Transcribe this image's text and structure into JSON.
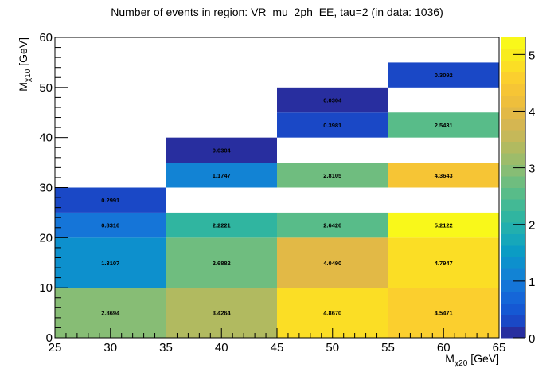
{
  "chart_data": {
    "type": "heatmap",
    "title": "Number of events in region: VR_mu_2ph_EE, tau=2 (in data: 1036)",
    "xlabel": {
      "main": "M",
      "sub": "χ20",
      "unit": " [GeV]"
    },
    "ylabel": {
      "main": "M",
      "sub": "χ10",
      "unit": " [GeV]"
    },
    "xlim": [
      25,
      65
    ],
    "ylim": [
      0,
      60
    ],
    "zlim": [
      0,
      5.3
    ],
    "x_ticks": [
      25,
      30,
      35,
      40,
      45,
      50,
      55,
      60,
      65
    ],
    "y_ticks": [
      0,
      10,
      20,
      30,
      40,
      50,
      60
    ],
    "z_ticks": [
      0,
      1,
      2,
      3,
      4,
      5
    ],
    "palette": [
      "#282e9f",
      "#1a48c6",
      "#1558d3",
      "#1566d8",
      "#1575d8",
      "#1283d4",
      "#0d90cd",
      "#0b9cc4",
      "#16a7ba",
      "#22afae",
      "#30b5a0",
      "#43b995",
      "#58bc89",
      "#6fbd7f",
      "#87bd75",
      "#9dbc6a",
      "#b1ba60",
      "#c5b859",
      "#d5b651",
      "#e2b946",
      "#eebf3c",
      "#f6c535",
      "#fbcf2e",
      "#fbde25",
      "#f8ec1d",
      "#f9f81a"
    ],
    "cells": [
      {
        "x0": 25,
        "x1": 35,
        "y0": 0,
        "y1": 10,
        "value": 2.8694,
        "label": "2.8694"
      },
      {
        "x0": 25,
        "x1": 35,
        "y0": 10,
        "y1": 20,
        "value": 1.3107,
        "label": "1.3107"
      },
      {
        "x0": 25,
        "x1": 35,
        "y0": 20,
        "y1": 25,
        "value": 0.8316,
        "label": "0.8316"
      },
      {
        "x0": 25,
        "x1": 35,
        "y0": 25,
        "y1": 30,
        "value": 0.2991,
        "label": "0.2991"
      },
      {
        "x0": 35,
        "x1": 45,
        "y0": 0,
        "y1": 10,
        "value": 3.4264,
        "label": "3.4264"
      },
      {
        "x0": 35,
        "x1": 45,
        "y0": 10,
        "y1": 20,
        "value": 2.6882,
        "label": "2.6882"
      },
      {
        "x0": 35,
        "x1": 45,
        "y0": 20,
        "y1": 25,
        "value": 2.2221,
        "label": "2.2221"
      },
      {
        "x0": 35,
        "x1": 45,
        "y0": 30,
        "y1": 35,
        "value": 1.1747,
        "label": "1.1747"
      },
      {
        "x0": 35,
        "x1": 45,
        "y0": 35,
        "y1": 40,
        "value": 0.0304,
        "label": "0.0304"
      },
      {
        "x0": 45,
        "x1": 55,
        "y0": 0,
        "y1": 10,
        "value": 4.867,
        "label": "4.8670"
      },
      {
        "x0": 45,
        "x1": 55,
        "y0": 10,
        "y1": 20,
        "value": 4.049,
        "label": "4.0490"
      },
      {
        "x0": 45,
        "x1": 55,
        "y0": 20,
        "y1": 25,
        "value": 2.6426,
        "label": "2.6426"
      },
      {
        "x0": 45,
        "x1": 55,
        "y0": 30,
        "y1": 35,
        "value": 2.8105,
        "label": "2.8105"
      },
      {
        "x0": 45,
        "x1": 55,
        "y0": 40,
        "y1": 45,
        "value": 0.3981,
        "label": "0.3981"
      },
      {
        "x0": 45,
        "x1": 55,
        "y0": 45,
        "y1": 50,
        "value": 0.0304,
        "label": "0.0304"
      },
      {
        "x0": 55,
        "x1": 65,
        "y0": 0,
        "y1": 10,
        "value": 4.5471,
        "label": "4.5471"
      },
      {
        "x0": 55,
        "x1": 65,
        "y0": 10,
        "y1": 20,
        "value": 4.7947,
        "label": "4.7947"
      },
      {
        "x0": 55,
        "x1": 65,
        "y0": 20,
        "y1": 25,
        "value": 5.2122,
        "label": "5.2122"
      },
      {
        "x0": 55,
        "x1": 65,
        "y0": 30,
        "y1": 35,
        "value": 4.3643,
        "label": "4.3643"
      },
      {
        "x0": 55,
        "x1": 65,
        "y0": 40,
        "y1": 45,
        "value": 2.5431,
        "label": "2.5431"
      },
      {
        "x0": 55,
        "x1": 65,
        "y0": 50,
        "y1": 55,
        "value": 0.3092,
        "label": "0.3092"
      }
    ],
    "grid": false,
    "legend": "colorbar-right"
  }
}
